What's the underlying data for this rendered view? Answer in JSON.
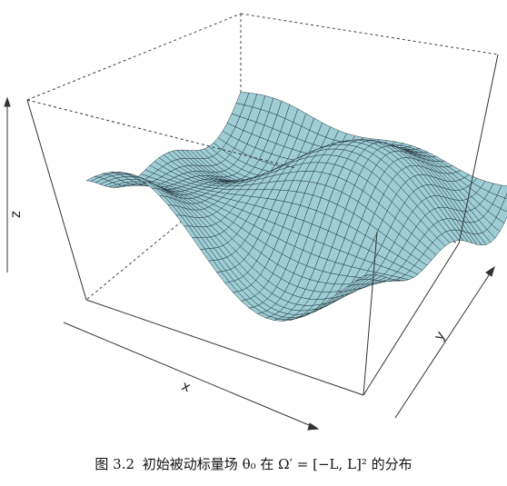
{
  "chart_data": {
    "type": "surface",
    "axes": {
      "x_label": "x",
      "y_label": "y",
      "z_label": "z"
    },
    "surface_color": "#9ecdd6",
    "mesh_color": "#1a2b30",
    "box": "full",
    "tick_labels_shown": false
  },
  "caption": {
    "figure_number": "图 3.2",
    "text": "初始被动标量场 θ₀ 在 Ω′ = [−L, L]² 的分布"
  }
}
